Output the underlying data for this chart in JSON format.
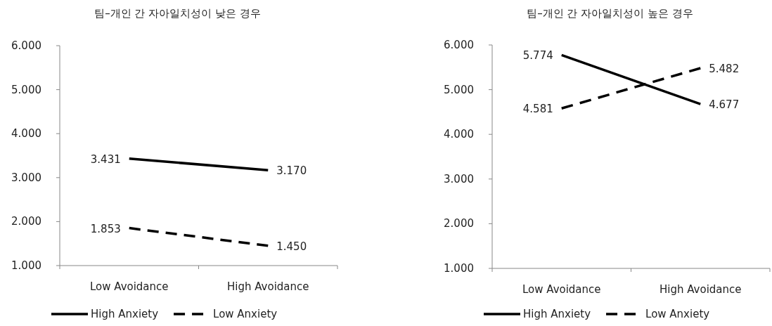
{
  "chart_data": [
    {
      "type": "line",
      "title": "팀–개인 간 자아일치성이 낮은 경우",
      "categories": [
        "Low Avoidance",
        "High Avoidance"
      ],
      "series": [
        {
          "name": "High Anxiety",
          "color": "#000000",
          "line_style": "solid",
          "values": [
            3.431,
            3.17
          ],
          "value_labels": [
            "3.431",
            "3.170"
          ]
        },
        {
          "name": "Low Anxiety",
          "color": "#000000",
          "line_style": "dashed",
          "values": [
            1.853,
            1.45
          ],
          "value_labels": [
            "1.853",
            "1.450"
          ]
        }
      ],
      "ylim": [
        1,
        6
      ],
      "yticks": [
        {
          "value": 1,
          "label": "1.000"
        },
        {
          "value": 2,
          "label": "2.000"
        },
        {
          "value": 3,
          "label": "3.000"
        },
        {
          "value": 4,
          "label": "4.000"
        },
        {
          "value": 5,
          "label": "5.000"
        },
        {
          "value": 6,
          "label": "6.000"
        }
      ],
      "legend": "bottom",
      "marker": "none"
    },
    {
      "type": "line",
      "title": "팀–개인 간 자아일치성이 높은 경우",
      "categories": [
        "Low Avoidance",
        "High Avoidance"
      ],
      "series": [
        {
          "name": "High Anxiety",
          "color": "#000000",
          "line_style": "solid",
          "values": [
            5.774,
            4.677
          ],
          "value_labels": [
            "5.774",
            "4.677"
          ]
        },
        {
          "name": "Low Anxiety",
          "color": "#000000",
          "line_style": "dashed",
          "values": [
            4.581,
            5.482
          ],
          "value_labels": [
            "4.581",
            "5.482"
          ]
        }
      ],
      "ylim": [
        1,
        6
      ],
      "yticks": [
        {
          "value": 1,
          "label": "1.000"
        },
        {
          "value": 2,
          "label": "2.000"
        },
        {
          "value": 3,
          "label": "3.000"
        },
        {
          "value": 4,
          "label": "4.000"
        },
        {
          "value": 5,
          "label": "5.000"
        },
        {
          "value": 6,
          "label": "6.000"
        }
      ],
      "legend": "bottom",
      "marker": "none"
    }
  ]
}
